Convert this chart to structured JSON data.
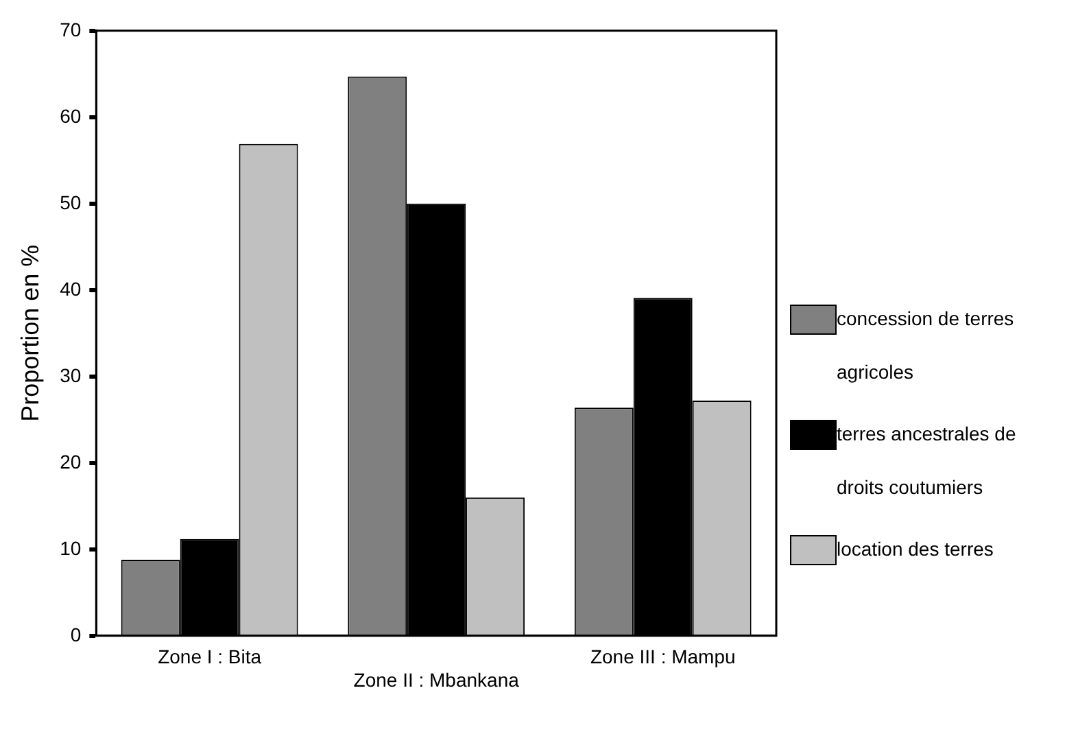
{
  "chart_data": {
    "type": "bar",
    "ylabel": "Proportion en %",
    "categories": [
      "Zone I : Bita",
      "Zone II : Mbankana",
      "Zone III : Mampu"
    ],
    "series": [
      {
        "name": "concession de terres agricoles",
        "color": "#808080",
        "values": [
          8.8,
          64.7,
          26.4
        ]
      },
      {
        "name": "terres ancestrales de droits coutumiers",
        "color": "#000000",
        "values": [
          11.2,
          50.0,
          39.1
        ]
      },
      {
        "name": "location des terres",
        "color": "#c0c0c0",
        "values": [
          56.9,
          16.0,
          27.2
        ]
      }
    ],
    "ylim": [
      0,
      70
    ],
    "yticks": [
      0,
      10,
      20,
      30,
      40,
      50,
      60,
      70
    ],
    "grid": false,
    "legend": "right"
  }
}
